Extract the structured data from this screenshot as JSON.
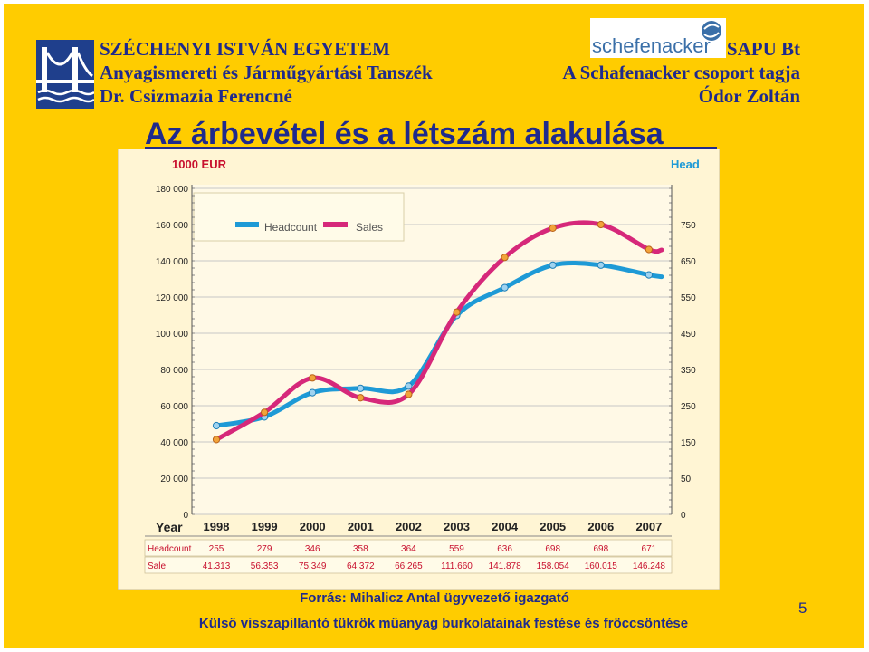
{
  "header": {
    "left": [
      "SZÉCHENYI ISTVÁN EGYETEM",
      "Anyagismereti és Járműgyártási Tanszék",
      "Dr. Csizmazia Ferencné"
    ],
    "right": [
      "SAPU Bt",
      "A Schafenacker csoport tagja",
      "Ódor Zoltán"
    ],
    "logo_left_icon": "bridge-logo-icon",
    "logo_right_text": "schefenacker",
    "logo_right_icon": "schefenacker-logo-icon"
  },
  "title": "Az árbevétel és a létszám alakulása",
  "source": "Forrás: Mihalicz Antal ügyvezető igazgató",
  "footer": "Külső visszapillantó tükrök műanyag burkolatainak festése és fröccsöntése",
  "page_number": "5",
  "colors": {
    "frame": "#ffcc00",
    "text": "#1f2a8c",
    "headcount": "#1e9ad6",
    "sales": "#d6287a",
    "chart_bg": "#fff5d4",
    "label": "#c8102e"
  },
  "chart_data": {
    "type": "line",
    "left_axis_title": "1000 EUR",
    "right_axis_title": "Head",
    "x_title": "Year",
    "left_ticks": [
      "180 000",
      "160 000",
      "140 000",
      "120 000",
      "100 000",
      "80 000",
      "60 000",
      "40 000",
      "20 000",
      "0"
    ],
    "right_ticks": [
      "750",
      "650",
      "550",
      "450",
      "350",
      "250",
      "150",
      "50",
      "0"
    ],
    "ylim_left": [
      0,
      180000
    ],
    "ylim_right": [
      0,
      850
    ],
    "categories": [
      "1998",
      "1999",
      "2000",
      "2001",
      "2002",
      "2003",
      "2004",
      "2005",
      "2006",
      "2007"
    ],
    "series": [
      {
        "name": "Headcount",
        "axis": "right",
        "values": [
          255,
          279,
          346,
          358,
          364,
          559,
          636,
          698,
          698,
          671
        ],
        "labels": [
          "255",
          "279",
          "346",
          "358",
          "364",
          "559",
          "636",
          "698",
          "698",
          "671"
        ]
      },
      {
        "name": "Sales",
        "axis": "left",
        "values": [
          41313,
          56353,
          75349,
          64372,
          66265,
          111660,
          141878,
          158054,
          160015,
          146248
        ],
        "labels": [
          "41.313",
          "56.353",
          "75.349",
          "64.372",
          "66.265",
          "111.660",
          "141.878",
          "158.054",
          "160.015",
          "146.248"
        ]
      }
    ],
    "table_row_labels": [
      "Headcount",
      "Sale"
    ],
    "legend": [
      "Headcount",
      "Sales"
    ],
    "legend_position": "top-left",
    "grid": true
  }
}
